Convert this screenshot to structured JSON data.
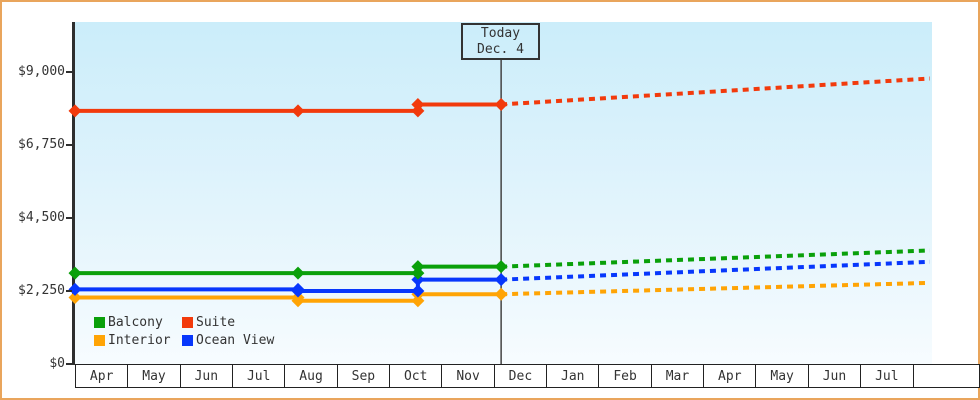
{
  "frame": {
    "border_color": "#e9a55c"
  },
  "chart_data": {
    "type": "line",
    "title": "",
    "description": "Cruise cabin price history (solid) and forecast after today (dashed)",
    "x_unit": "months-from-Apr",
    "x_axis_labels": [
      "Apr",
      "May",
      "Jun",
      "Jul",
      "Aug",
      "Sep",
      "Oct",
      "Nov",
      "Dec",
      "Jan",
      "Feb",
      "Mar",
      "Apr",
      "May",
      "Jun",
      "Jul"
    ],
    "y_ticks": [
      {
        "label": "$9,000",
        "value": 9000
      },
      {
        "label": "$6,750",
        "value": 6750
      },
      {
        "label": "$4,500",
        "value": 4500
      },
      {
        "label": "$2,250",
        "value": 2250
      },
      {
        "label": "$0",
        "value": 0
      }
    ],
    "y_domain": [
      0,
      10540
    ],
    "grid": "off",
    "today": {
      "t": 8.14,
      "label_line1": "Today",
      "label_line2": "Dec. 4"
    },
    "forecast_style": "dashed",
    "series": [
      {
        "name": "Balcony",
        "color": "#0aa00a",
        "history": [
          {
            "t": 0,
            "value": 2800
          },
          {
            "t": 4.26,
            "value": 2800
          },
          {
            "t": 6.55,
            "value": 3000
          },
          {
            "t": 8.14,
            "value": 3000
          }
        ],
        "forecast": [
          {
            "t": 8.14,
            "value": 3000
          },
          {
            "t": 16.33,
            "value": 3500
          }
        ]
      },
      {
        "name": "Suite",
        "color": "#f23a0c",
        "history": [
          {
            "t": 0,
            "value": 7800
          },
          {
            "t": 4.26,
            "value": 7800
          },
          {
            "t": 6.55,
            "value": 8000
          },
          {
            "t": 8.14,
            "value": 8000
          }
        ],
        "forecast": [
          {
            "t": 8.14,
            "value": 8000
          },
          {
            "t": 16.33,
            "value": 8800
          }
        ]
      },
      {
        "name": "Interior",
        "color": "#ffa405",
        "history": [
          {
            "t": 0,
            "value": 2050
          },
          {
            "t": 4.26,
            "value": 1950
          },
          {
            "t": 6.55,
            "value": 2150
          },
          {
            "t": 8.14,
            "value": 2150
          }
        ],
        "forecast": [
          {
            "t": 8.14,
            "value": 2150
          },
          {
            "t": 16.33,
            "value": 2500
          }
        ]
      },
      {
        "name": "Ocean View",
        "color": "#0737fc",
        "history": [
          {
            "t": 0,
            "value": 2300
          },
          {
            "t": 4.26,
            "value": 2250
          },
          {
            "t": 6.55,
            "value": 2600
          },
          {
            "t": 8.14,
            "value": 2600
          }
        ],
        "forecast": [
          {
            "t": 8.14,
            "value": 2600
          },
          {
            "t": 16.33,
            "value": 3150
          }
        ]
      }
    ],
    "legend": {
      "position": "bottom-left",
      "items": [
        "Balcony",
        "Suite",
        "Interior",
        "Ocean View"
      ]
    }
  }
}
